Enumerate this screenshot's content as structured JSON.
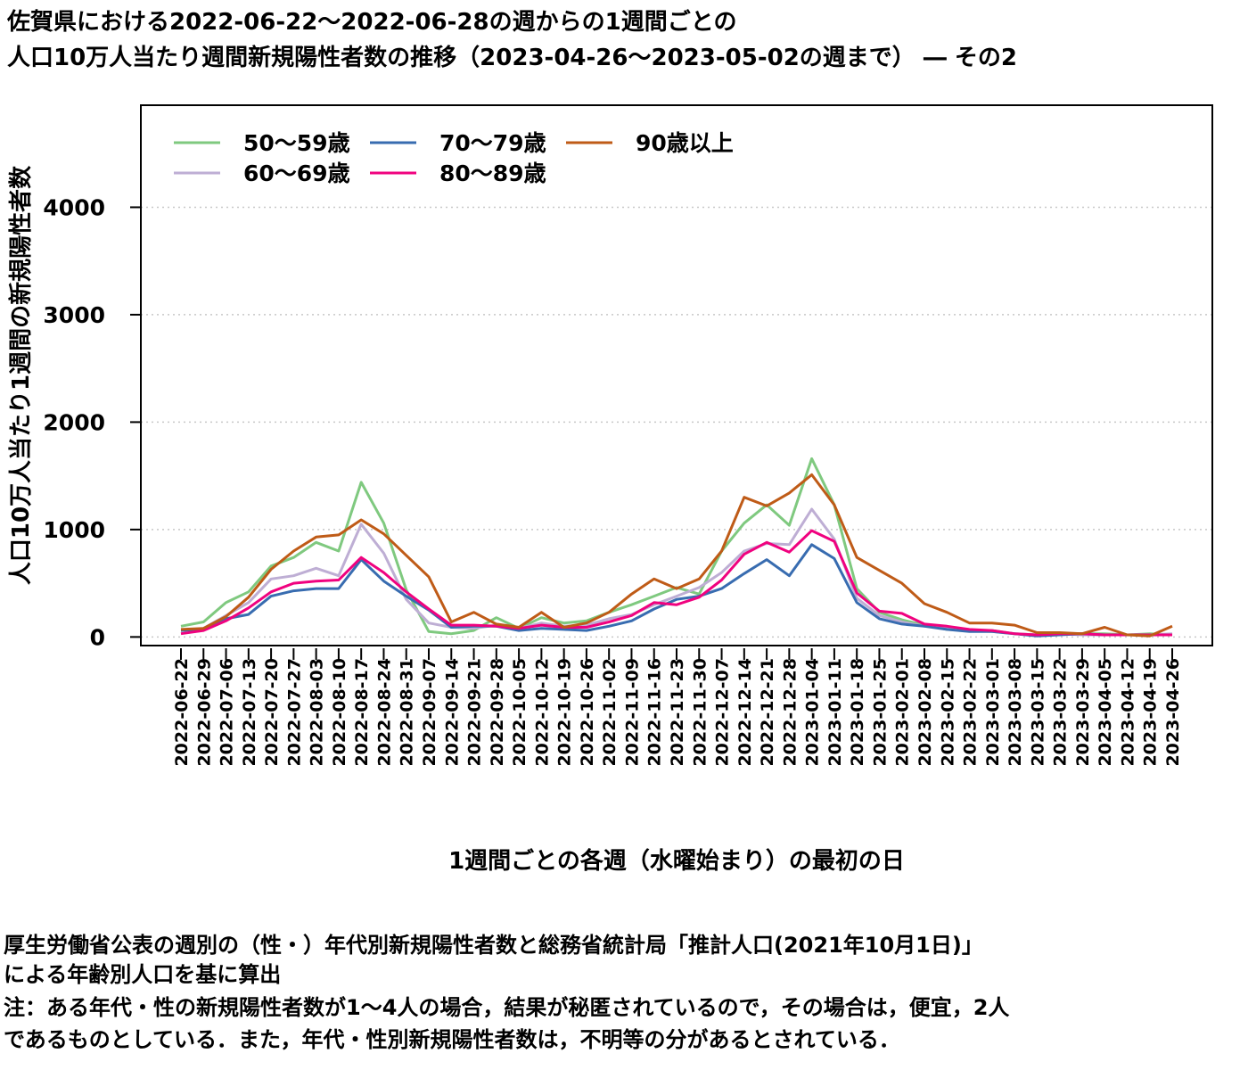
{
  "title_line1": "佐賀県における2022-06-22〜2022-06-28の週からの1週間ごとの",
  "title_line2": "人口10万人当たり週間新規陽性者数の推移（2023-04-26〜2023-05-02の週まで） ― その2",
  "footnote_line1": "厚生労働省公表の週別の（性・）年代別新規陽性者数と総務省統計局「推計人口(2021年10月1日)」",
  "footnote_line2": "による年齢別人口を基に算出",
  "footnote_line3": "注：ある年代・性の新規陽性者数が1〜4人の場合，結果が秘匿されているので，その場合は，便宜，2人",
  "footnote_line4": "であるものとしている．また，年代・性別新規陽性者数は，不明等の分があるとされている．",
  "chart_data": {
    "type": "line",
    "xlabel": "1週間ごとの各週（水曜始まり）の最初の日",
    "ylabel": "人口10万人当たり1週間の新規陽性者数",
    "ylim": [
      -80,
      4950
    ],
    "yticks": [
      0,
      1000,
      2000,
      3000,
      4000
    ],
    "grid": "horizontal dotted",
    "legend_position": "top-left",
    "x": [
      "2022-06-22",
      "2022-06-29",
      "2022-07-06",
      "2022-07-13",
      "2022-07-20",
      "2022-07-27",
      "2022-08-03",
      "2022-08-10",
      "2022-08-17",
      "2022-08-24",
      "2022-08-31",
      "2022-09-07",
      "2022-09-14",
      "2022-09-21",
      "2022-09-28",
      "2022-10-05",
      "2022-10-12",
      "2022-10-19",
      "2022-10-26",
      "2022-11-02",
      "2022-11-09",
      "2022-11-16",
      "2022-11-23",
      "2022-11-30",
      "2022-12-07",
      "2022-12-14",
      "2022-12-21",
      "2022-12-28",
      "2023-01-04",
      "2023-01-11",
      "2023-01-18",
      "2023-01-25",
      "2023-02-01",
      "2023-02-08",
      "2023-02-15",
      "2023-02-22",
      "2023-03-01",
      "2023-03-08",
      "2023-03-15",
      "2023-03-22",
      "2023-03-29",
      "2023-04-05",
      "2023-04-12",
      "2023-04-19",
      "2023-04-26"
    ],
    "series": [
      {
        "name": "50〜59歳",
        "color": "#7fc97f",
        "values": [
          100,
          140,
          320,
          420,
          660,
          740,
          880,
          800,
          1440,
          1060,
          440,
          50,
          30,
          60,
          180,
          80,
          180,
          130,
          150,
          230,
          300,
          380,
          460,
          400,
          800,
          1060,
          1230,
          1040,
          1660,
          1230,
          450,
          230,
          160,
          110,
          70,
          60,
          60,
          30,
          20,
          30,
          30,
          30,
          20,
          30,
          20
        ]
      },
      {
        "name": "60〜69歳",
        "color": "#beaed4",
        "values": [
          60,
          80,
          200,
          320,
          540,
          570,
          640,
          570,
          1050,
          780,
          350,
          130,
          90,
          80,
          110,
          80,
          130,
          100,
          110,
          170,
          210,
          300,
          380,
          460,
          600,
          800,
          870,
          860,
          1190,
          910,
          360,
          200,
          140,
          100,
          90,
          60,
          50,
          30,
          20,
          30,
          20,
          20,
          20,
          20,
          30
        ]
      },
      {
        "name": "70〜79歳",
        "color": "#386cb0",
        "values": [
          60,
          70,
          170,
          210,
          380,
          430,
          450,
          450,
          720,
          520,
          380,
          250,
          90,
          100,
          100,
          60,
          80,
          70,
          60,
          100,
          150,
          260,
          350,
          380,
          450,
          590,
          720,
          570,
          860,
          730,
          320,
          170,
          120,
          100,
          70,
          50,
          50,
          30,
          10,
          20,
          30,
          20,
          20,
          20,
          20
        ]
      },
      {
        "name": "80〜89歳",
        "color": "#f0027f",
        "values": [
          30,
          60,
          150,
          270,
          420,
          500,
          520,
          530,
          740,
          600,
          420,
          260,
          110,
          110,
          100,
          80,
          110,
          90,
          90,
          140,
          200,
          320,
          300,
          370,
          530,
          770,
          880,
          790,
          990,
          890,
          410,
          240,
          220,
          120,
          100,
          70,
          60,
          30,
          20,
          30,
          30,
          20,
          20,
          20,
          20
        ]
      },
      {
        "name": "90歳以上",
        "color": "#bf5b17",
        "values": [
          70,
          80,
          190,
          370,
          630,
          800,
          930,
          950,
          1090,
          960,
          760,
          560,
          140,
          230,
          120,
          90,
          230,
          90,
          130,
          230,
          400,
          540,
          450,
          540,
          800,
          1300,
          1220,
          1340,
          1510,
          1230,
          740,
          620,
          500,
          310,
          230,
          130,
          130,
          110,
          40,
          40,
          30,
          90,
          20,
          10,
          100
        ]
      }
    ]
  }
}
